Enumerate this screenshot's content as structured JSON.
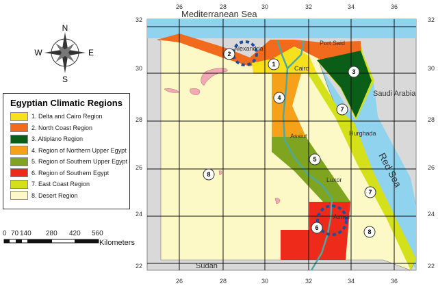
{
  "legend": {
    "title": "Egyptian Climatic Regions",
    "items": [
      {
        "label": "1. Delta and Cairo Region",
        "color": "#f7e11c"
      },
      {
        "label": "2. North Coast Region",
        "color": "#f26a1b"
      },
      {
        "label": "3. Altiplano Region",
        "color": "#0b5e17"
      },
      {
        "label": "4. Region of Northern Upper Egypt",
        "color": "#f7a11a"
      },
      {
        "label": "5. Region of Southern Upper Egypt",
        "color": "#7fa520"
      },
      {
        "label": "6. Region of Southern Egypt",
        "color": "#ee2a1a"
      },
      {
        "label": "7. East Coast Region",
        "color": "#d4e11a"
      },
      {
        "label": "8. Desert Region",
        "color": "#fdf9c6"
      }
    ]
  },
  "scale": {
    "ticks": [
      "0",
      "70",
      "140",
      "280",
      "420",
      "560"
    ],
    "unit": "Kilometers"
  },
  "compass": {
    "n": "N",
    "s": "S",
    "e": "E",
    "w": "W"
  },
  "longitudes": [
    "26",
    "28",
    "30",
    "32",
    "34",
    "36"
  ],
  "latitudes": [
    "32",
    "30",
    "28",
    "26",
    "24",
    "22"
  ],
  "places": {
    "med": "Mediterranean Sea",
    "red": "Red Sea",
    "saudi": "Saudi Arabia",
    "sudan": "Sudan",
    "alex": "Alexandria",
    "portsaid": "Port Said",
    "cairo": "Cairo",
    "assiut": "Assiut",
    "hurghada": "Hurghada",
    "luxor": "Luxor",
    "aswan": "Aswan"
  },
  "region_markers": [
    "1",
    "2",
    "3",
    "4",
    "5",
    "6",
    "7",
    "7",
    "8",
    "8"
  ],
  "colors": {
    "sea": "#8fd3ef",
    "land_other": "#d9d9d9",
    "lake": "#f2a9b5",
    "nile": "#4fa8a0",
    "highlight": "#1f4f9a"
  }
}
